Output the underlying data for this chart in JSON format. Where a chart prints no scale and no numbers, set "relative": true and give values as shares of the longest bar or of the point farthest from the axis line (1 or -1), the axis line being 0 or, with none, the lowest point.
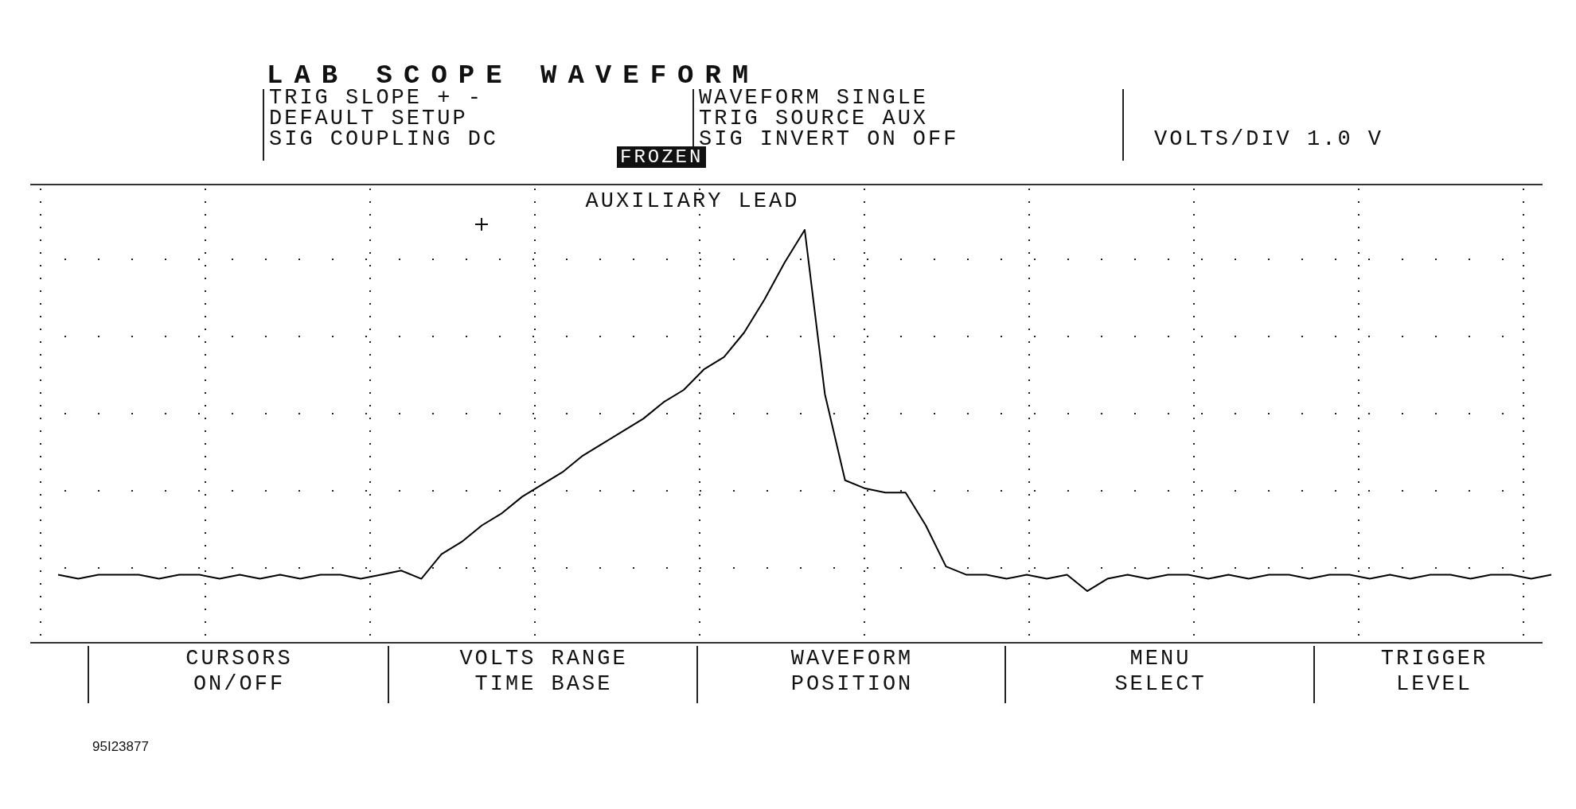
{
  "chart_data": {
    "type": "line",
    "title": "LAB SCOPE WAVEFORM",
    "subtitle": "AUXILIARY LEAD",
    "relative": true,
    "legend": false,
    "marker": "none",
    "line_style": "solid",
    "grid": true,
    "categories": [
      null,
      null,
      null,
      null,
      null,
      null,
      null,
      null,
      null,
      null,
      null,
      null,
      null,
      null,
      null,
      null,
      null,
      null,
      null,
      null,
      null,
      null,
      null,
      null,
      null,
      null,
      null,
      null,
      null,
      null,
      null,
      null,
      null,
      null,
      null,
      null,
      null,
      null,
      null,
      null,
      null,
      null,
      null,
      null,
      null,
      null,
      null,
      null,
      null,
      null,
      null,
      null,
      null,
      null,
      null,
      null,
      null,
      null,
      null,
      null,
      null,
      null,
      null,
      null,
      null,
      null,
      null,
      null,
      null,
      null,
      null,
      null,
      null,
      null,
      null
    ],
    "series": [
      {
        "color": "#000000",
        "values": [
          0.16,
          0.15,
          0.16,
          0.16,
          0.16,
          0.15,
          0.16,
          0.16,
          0.15,
          0.16,
          0.15,
          0.16,
          0.15,
          0.16,
          0.16,
          0.15,
          0.16,
          0.17,
          0.15,
          0.21,
          0.24,
          0.28,
          0.31,
          0.35,
          0.38,
          0.41,
          0.45,
          0.48,
          0.51,
          0.54,
          0.58,
          0.61,
          0.66,
          0.69,
          0.75,
          0.83,
          0.92,
          1,
          0.6,
          0.39,
          0.37,
          0.36,
          0.36,
          0.28,
          0.18,
          0.16,
          0.16,
          0.15,
          0.16,
          0.15,
          0.16,
          0.12,
          0.15,
          0.16,
          0.15,
          0.16,
          0.16,
          0.15,
          0.16,
          0.15,
          0.16,
          0.16,
          0.15,
          0.16,
          0.16,
          0.15,
          0.16,
          0.15,
          0.16,
          0.16,
          0.15,
          0.16,
          0.16,
          0.15,
          0.16
        ]
      }
    ],
    "annotations": [
      "TRIG SLOPE + -",
      "DEFAULT SETUP",
      "SIG COUPLING DC",
      "WAVEFORM SINGLE",
      "TRIG SOURCE AUX",
      "SIG INVERT ON OFF",
      "VOLTS/DIV 1.0 V",
      "FROZEN",
      "CURSORS",
      "ON/OFF",
      "VOLTS RANGE",
      "TIME BASE",
      "WAVEFORM",
      "POSITION",
      "MENU",
      "SELECT",
      "TRIGGER",
      "LEVEL",
      "95I23877"
    ]
  }
}
